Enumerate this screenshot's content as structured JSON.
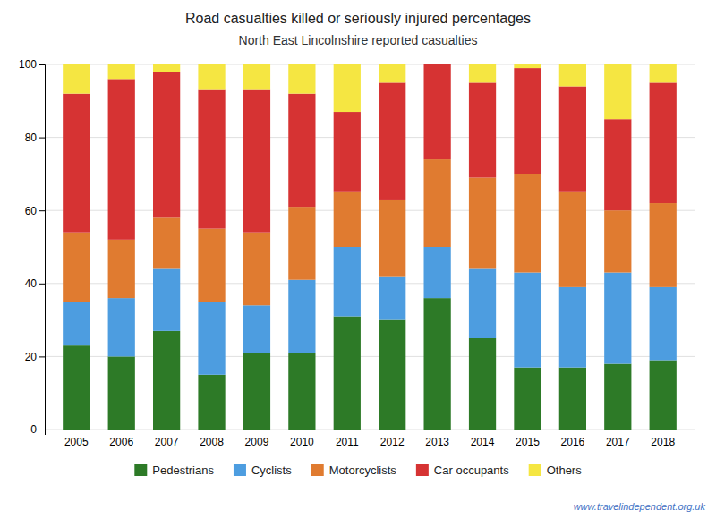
{
  "chart_data": {
    "type": "bar",
    "stacked": true,
    "title": "Road casualties killed or seriously injured percentages",
    "subtitle": "North East Lincolnshire reported casualties",
    "categories": [
      "2005",
      "2006",
      "2007",
      "2008",
      "2009",
      "2010",
      "2011",
      "2012",
      "2013",
      "2014",
      "2015",
      "2016",
      "2017",
      "2018"
    ],
    "series": [
      {
        "name": "Pedestrians",
        "color": "#2d7a27",
        "values": [
          23,
          20,
          27,
          15,
          21,
          21,
          31,
          30,
          36,
          25,
          17,
          17,
          18,
          19
        ]
      },
      {
        "name": "Cyclists",
        "color": "#4d9de0",
        "values": [
          12,
          16,
          17,
          20,
          13,
          20,
          19,
          12,
          14,
          19,
          26,
          22,
          25,
          20
        ]
      },
      {
        "name": "Motorcyclists",
        "color": "#e07b30",
        "values": [
          19,
          16,
          14,
          20,
          20,
          20,
          15,
          21,
          24,
          25,
          27,
          26,
          17,
          23
        ]
      },
      {
        "name": "Car occupants",
        "color": "#d63333",
        "values": [
          38,
          44,
          40,
          38,
          39,
          31,
          22,
          32,
          26,
          26,
          29,
          29,
          25,
          33
        ]
      },
      {
        "name": "Others",
        "color": "#f5e642",
        "values": [
          8,
          4,
          2,
          7,
          7,
          8,
          13,
          5,
          0,
          5,
          1,
          6,
          15,
          5
        ]
      }
    ],
    "ylim": [
      0,
      100
    ],
    "yticks": [
      0,
      20,
      40,
      60,
      80,
      100
    ],
    "grid": true,
    "legend": "bottom",
    "annotations": [
      "www.travelindependent.org.uk"
    ]
  }
}
